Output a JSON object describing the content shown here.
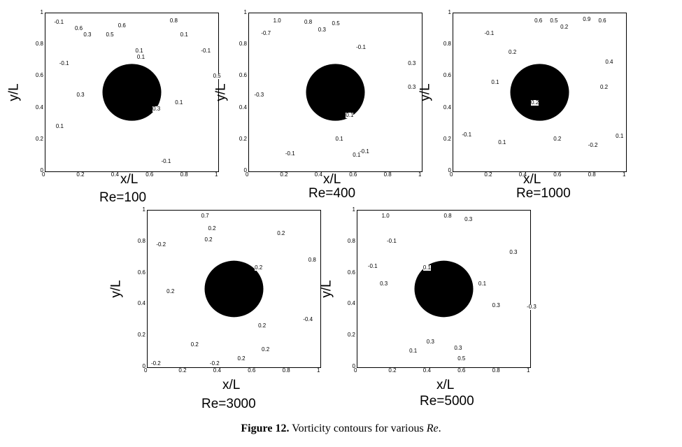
{
  "figure": {
    "caption_label": "Figure 12.",
    "caption_text": " Vorticity contours for various ",
    "caption_var": "Re",
    "caption_end": "."
  },
  "panels": [
    {
      "re_label": "Re=100",
      "xlabel": "x/L",
      "ylabel": "y/L",
      "xticks": [
        "0",
        "0.2",
        "0.4",
        "0.6",
        "0.8",
        "1"
      ],
      "yticks": [
        "1",
        "0.8",
        "0.6",
        "0.4",
        "0.2",
        "0"
      ],
      "contour_labels": [
        "0.8",
        "0.6",
        "0.6",
        "0.5",
        "0.3",
        "-0.1",
        "0.1",
        "-0.1",
        "0.1",
        "0.1",
        "-0.1",
        "0.1",
        "0.1",
        "-0.1",
        "0.3",
        "0.3",
        "0.5"
      ]
    },
    {
      "re_label": "Re=400",
      "xlabel": "x/L",
      "ylabel": "y/L",
      "xticks": [
        "0",
        "0.2",
        "0.4",
        "0.6",
        "0.8",
        "1"
      ],
      "yticks": [
        "1",
        "0.8",
        "0.6",
        "0.4",
        "0.2",
        "0"
      ],
      "contour_labels": [
        "1.0",
        "0.8",
        "0.5",
        "0.3",
        "-0.7",
        "-0.1",
        "-0.3",
        "0.1",
        "0.3",
        "-0.1",
        "0.1",
        "-0.1",
        "0.1",
        "0.3"
      ]
    },
    {
      "re_label": "Re=1000",
      "xlabel": "x/L",
      "ylabel": "y/L",
      "xticks": [
        "0",
        "0.2",
        "0.4",
        "0.6",
        "0.8",
        "1"
      ],
      "yticks": [
        "1",
        "0.8",
        "0.6",
        "0.4",
        "0.2",
        "0"
      ],
      "contour_labels": [
        "0.6",
        "0.5",
        "0.2",
        "0.9",
        "0.6",
        "-0.1",
        "0.2",
        "0.4",
        "0.1",
        "0.2",
        "-0.1",
        "0.2",
        "0.1",
        "0.2",
        "-0.2",
        "0.1"
      ]
    },
    {
      "re_label": "Re=3000",
      "xlabel": "x/L",
      "ylabel": "y/L",
      "xticks": [
        "0",
        "0.2",
        "0.4",
        "0.6",
        "0.8",
        "1"
      ],
      "yticks": [
        "1",
        "0.8",
        "0.6",
        "0.4",
        "0.2",
        "0"
      ],
      "contour_labels": [
        "0.7",
        "0.2",
        "-0.2",
        "0.2",
        "0.2",
        "0.8",
        "0.2",
        "0.2",
        "0.2",
        "-0.2",
        "0.2",
        "-0.4",
        "0.2",
        "0.2",
        "-0.2"
      ]
    },
    {
      "re_label": "Re=5000",
      "xlabel": "x/L",
      "ylabel": "y/L",
      "xticks": [
        "0",
        "0.2",
        "0.4",
        "0.6",
        "0.8",
        "1"
      ],
      "yticks": [
        "1",
        "0.8",
        "0.6",
        "0.4",
        "0.2",
        "0"
      ],
      "contour_labels": [
        "1.0",
        "0.8",
        "0.3",
        "-0.1",
        "-0.1",
        "0.3",
        "0.1",
        "0.1",
        "0.3",
        "0.3",
        "0.3",
        "0.1",
        "0.3",
        "0.5",
        "-0.3"
      ]
    }
  ]
}
